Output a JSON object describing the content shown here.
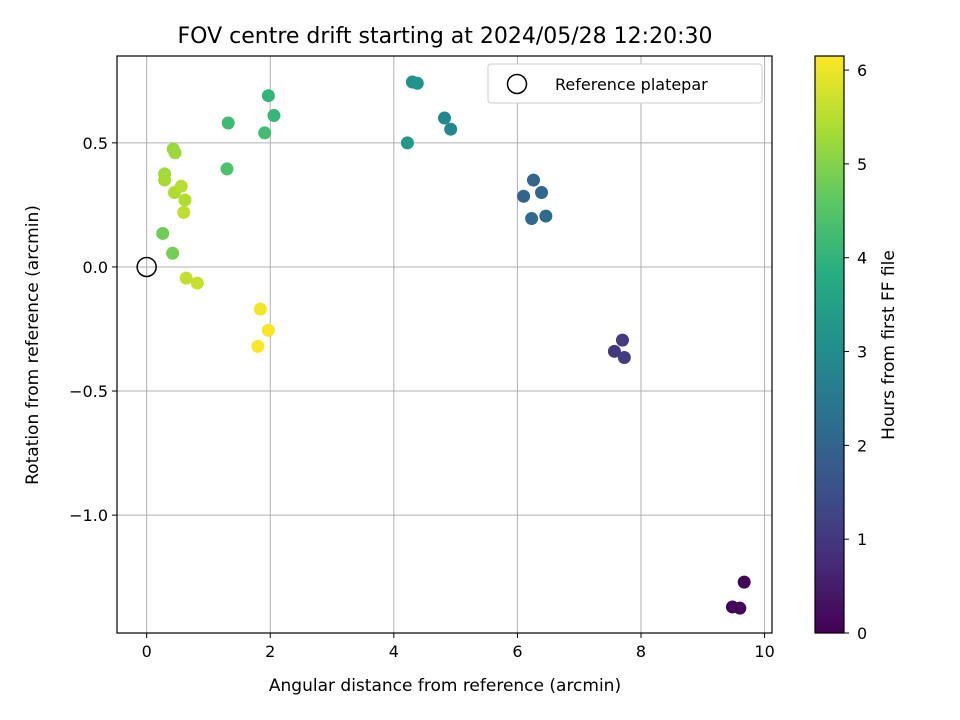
{
  "chart_data": {
    "type": "scatter",
    "title": "FOV centre drift starting at 2024/05/28 12:20:30",
    "xlabel": "Angular distance from reference (arcmin)",
    "ylabel": "Rotation from reference (arcmin)",
    "colorbar_label": "Hours from first FF file",
    "xlim": [
      -0.48,
      10.12
    ],
    "ylim": [
      -1.475,
      0.85
    ],
    "x_ticks": [
      0,
      2,
      4,
      6,
      8,
      10
    ],
    "x_tick_labels": [
      "0",
      "2",
      "4",
      "6",
      "8",
      "10"
    ],
    "y_ticks": [
      -1.0,
      -0.5,
      0.0,
      0.5
    ],
    "y_tick_labels": [
      "−1.0",
      "−0.5",
      "0.0",
      "0.5"
    ],
    "colorbar_range": [
      0,
      6.15
    ],
    "colorbar_ticks": [
      0,
      1,
      2,
      3,
      4,
      5,
      6
    ],
    "colorbar_tick_labels": [
      "0",
      "1",
      "2",
      "3",
      "4",
      "5",
      "6"
    ],
    "colormap": "viridis",
    "grid": true,
    "legend": {
      "position": "top-right",
      "entries": [
        "Reference platepar"
      ]
    },
    "reference_point": {
      "x": 0.0,
      "y": 0.0
    },
    "points": [
      {
        "x": 9.67,
        "y": -1.27,
        "hours": 0.05
      },
      {
        "x": 9.48,
        "y": -1.37,
        "hours": 0.08
      },
      {
        "x": 9.6,
        "y": -1.375,
        "hours": 0.1
      },
      {
        "x": 7.57,
        "y": -0.34,
        "hours": 1.0
      },
      {
        "x": 7.7,
        "y": -0.295,
        "hours": 1.05
      },
      {
        "x": 7.73,
        "y": -0.365,
        "hours": 1.1
      },
      {
        "x": 6.1,
        "y": 0.285,
        "hours": 2.0
      },
      {
        "x": 6.26,
        "y": 0.35,
        "hours": 2.05
      },
      {
        "x": 6.39,
        "y": 0.3,
        "hours": 2.1
      },
      {
        "x": 6.23,
        "y": 0.195,
        "hours": 2.12
      },
      {
        "x": 6.46,
        "y": 0.205,
        "hours": 2.15
      },
      {
        "x": 4.92,
        "y": 0.555,
        "hours": 2.85
      },
      {
        "x": 4.82,
        "y": 0.6,
        "hours": 2.9
      },
      {
        "x": 4.3,
        "y": 0.745,
        "hours": 3.1
      },
      {
        "x": 4.38,
        "y": 0.74,
        "hours": 3.15
      },
      {
        "x": 4.22,
        "y": 0.5,
        "hours": 3.3
      },
      {
        "x": 1.97,
        "y": 0.69,
        "hours": 4.05
      },
      {
        "x": 2.06,
        "y": 0.61,
        "hours": 4.1
      },
      {
        "x": 1.32,
        "y": 0.58,
        "hours": 4.2
      },
      {
        "x": 1.91,
        "y": 0.54,
        "hours": 4.25
      },
      {
        "x": 1.3,
        "y": 0.395,
        "hours": 4.4
      },
      {
        "x": 0.26,
        "y": 0.135,
        "hours": 4.8
      },
      {
        "x": 0.42,
        "y": 0.055,
        "hours": 4.85
      },
      {
        "x": 0.43,
        "y": 0.475,
        "hours": 5.2
      },
      {
        "x": 0.46,
        "y": 0.46,
        "hours": 5.25
      },
      {
        "x": 0.29,
        "y": 0.375,
        "hours": 5.3
      },
      {
        "x": 0.29,
        "y": 0.35,
        "hours": 5.35
      },
      {
        "x": 0.45,
        "y": 0.3,
        "hours": 5.4
      },
      {
        "x": 0.62,
        "y": 0.27,
        "hours": 5.45
      },
      {
        "x": 0.56,
        "y": 0.325,
        "hours": 5.5
      },
      {
        "x": 0.6,
        "y": 0.22,
        "hours": 5.55
      },
      {
        "x": 0.64,
        "y": -0.045,
        "hours": 5.6
      },
      {
        "x": 0.82,
        "y": -0.065,
        "hours": 5.65
      },
      {
        "x": 1.84,
        "y": -0.17,
        "hours": 6.05
      },
      {
        "x": 1.97,
        "y": -0.255,
        "hours": 6.1
      },
      {
        "x": 1.8,
        "y": -0.32,
        "hours": 6.12
      }
    ]
  }
}
